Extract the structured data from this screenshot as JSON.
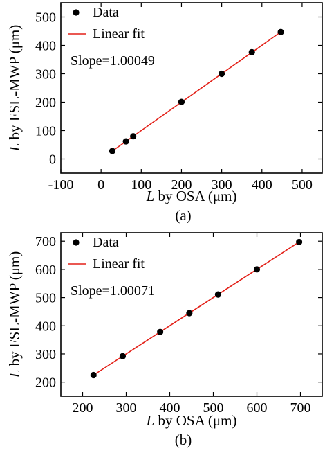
{
  "chart_data": [
    {
      "type": "scatter",
      "caption": "(a)",
      "xlabel_var": "L",
      "xlabel_rest": " by OSA  (μm)",
      "ylabel_var": "L",
      "ylabel_rest": " by FSL-MWP  (μm)",
      "xlim": [
        -100,
        550
      ],
      "ylim": [
        -50,
        550
      ],
      "xticks": [
        -100,
        0,
        100,
        200,
        300,
        400,
        500
      ],
      "yticks": [
        0,
        100,
        200,
        300,
        400,
        500
      ],
      "grid": false,
      "legend_position": "top-left",
      "series": [
        {
          "name": "Data",
          "kind": "points",
          "color": "#000000",
          "x": [
            28,
            62,
            80,
            200,
            300,
            375,
            447
          ],
          "y": [
            28,
            62,
            80,
            201,
            300,
            376,
            447
          ]
        },
        {
          "name": "Linear fit",
          "kind": "line",
          "color": "#e32119",
          "x": [
            28,
            447
          ],
          "y": [
            28,
            447.2
          ]
        }
      ],
      "annotation": "Slope=1.00049"
    },
    {
      "type": "scatter",
      "caption": "(b)",
      "xlabel_var": "L",
      "xlabel_rest": " by OSA  (μm)",
      "ylabel_var": "L",
      "ylabel_rest": " by FSL-MWP  (μm)",
      "xlim": [
        150,
        750
      ],
      "ylim": [
        150,
        730
      ],
      "xticks": [
        200,
        300,
        400,
        500,
        600,
        700
      ],
      "yticks": [
        200,
        300,
        400,
        500,
        600,
        700
      ],
      "grid": false,
      "legend_position": "top-left",
      "series": [
        {
          "name": "Data",
          "kind": "points",
          "color": "#000000",
          "x": [
            225,
            292,
            378,
            445,
            511,
            600,
            697
          ],
          "y": [
            225,
            292,
            378,
            445,
            511,
            600,
            697
          ]
        },
        {
          "name": "Linear fit",
          "kind": "line",
          "color": "#e32119",
          "x": [
            225,
            697
          ],
          "y": [
            225,
            697.3
          ]
        }
      ],
      "annotation": "Slope=1.00071"
    }
  ]
}
